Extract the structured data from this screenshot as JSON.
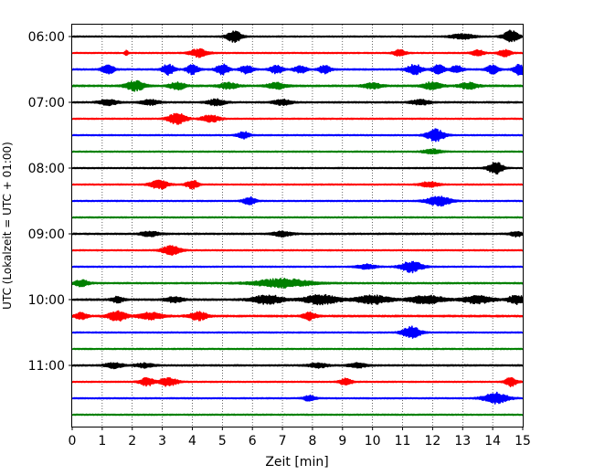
{
  "chart_data": {
    "type": "line",
    "title": "",
    "xlabel": "Zeit  [min]",
    "ylabel": "UTC (Lokalzeit = UTC + 01:00)",
    "xlim": [
      0,
      15
    ],
    "x_ticks": [
      "0",
      "1",
      "2",
      "3",
      "4",
      "5",
      "6",
      "7",
      "8",
      "9",
      "10",
      "11",
      "12",
      "13",
      "14",
      "15"
    ],
    "y_tick_labels": [
      "06:00",
      "07:00",
      "08:00",
      "09:00",
      "10:00",
      "11:00"
    ],
    "trace_interval_minutes": 15,
    "trace_colors": [
      "#000000",
      "#ff0000",
      "#0000ff",
      "#008000"
    ],
    "grid": "vertical dotted",
    "series": [
      {
        "start": "06:00",
        "color": "#000000",
        "base": 0.25,
        "bursts": [
          [
            5.4,
            3.0,
            0.25
          ],
          [
            14.6,
            3.2,
            0.25
          ],
          [
            13.0,
            1.4,
            0.4
          ]
        ]
      },
      {
        "start": "06:15",
        "color": "#ff0000",
        "base": 0.25,
        "bursts": [
          [
            4.2,
            2.2,
            0.3
          ],
          [
            1.8,
            2.2,
            0.05
          ],
          [
            10.9,
            1.8,
            0.2
          ],
          [
            13.5,
            1.8,
            0.2
          ],
          [
            14.4,
            2.0,
            0.2
          ]
        ]
      },
      {
        "start": "06:30",
        "color": "#0000ff",
        "base": 0.3,
        "bursts": [
          [
            1.2,
            2.6,
            0.2
          ],
          [
            3.2,
            3.0,
            0.2
          ],
          [
            4.0,
            2.6,
            0.2
          ],
          [
            5.0,
            3.0,
            0.2
          ],
          [
            5.8,
            2.4,
            0.2
          ],
          [
            6.8,
            2.4,
            0.2
          ],
          [
            7.6,
            2.2,
            0.2
          ],
          [
            8.4,
            2.2,
            0.2
          ],
          [
            11.4,
            2.8,
            0.25
          ],
          [
            12.2,
            2.6,
            0.2
          ],
          [
            12.8,
            2.2,
            0.2
          ],
          [
            14.0,
            2.4,
            0.2
          ],
          [
            14.9,
            3.0,
            0.2
          ]
        ]
      },
      {
        "start": "06:45",
        "color": "#008000",
        "base": 0.35,
        "bursts": [
          [
            2.1,
            2.8,
            0.3
          ],
          [
            3.5,
            2.2,
            0.25
          ],
          [
            5.2,
            1.8,
            0.3
          ],
          [
            6.8,
            1.8,
            0.3
          ],
          [
            10.0,
            1.6,
            0.3
          ],
          [
            12.0,
            2.2,
            0.3
          ],
          [
            13.2,
            1.8,
            0.3
          ]
        ]
      },
      {
        "start": "07:00",
        "color": "#000000",
        "base": 0.3,
        "bursts": [
          [
            1.2,
            1.8,
            0.3
          ],
          [
            2.6,
            1.6,
            0.3
          ],
          [
            4.8,
            1.8,
            0.3
          ],
          [
            7.0,
            1.6,
            0.3
          ],
          [
            11.6,
            1.6,
            0.3
          ]
        ]
      },
      {
        "start": "07:15",
        "color": "#ff0000",
        "base": 0.25,
        "bursts": [
          [
            3.5,
            3.0,
            0.3
          ],
          [
            4.6,
            2.0,
            0.3
          ]
        ]
      },
      {
        "start": "07:30",
        "color": "#0000ff",
        "base": 0.25,
        "bursts": [
          [
            5.7,
            2.0,
            0.2
          ],
          [
            12.1,
            3.2,
            0.3
          ]
        ]
      },
      {
        "start": "07:45",
        "color": "#008000",
        "base": 0.25,
        "bursts": [
          [
            12.0,
            1.4,
            0.3
          ]
        ]
      },
      {
        "start": "08:00",
        "color": "#000000",
        "base": 0.25,
        "bursts": [
          [
            14.1,
            3.2,
            0.25
          ]
        ]
      },
      {
        "start": "08:15",
        "color": "#ff0000",
        "base": 0.25,
        "bursts": [
          [
            2.9,
            2.4,
            0.3
          ],
          [
            4.0,
            2.4,
            0.2
          ],
          [
            11.9,
            1.6,
            0.3
          ]
        ]
      },
      {
        "start": "08:30",
        "color": "#0000ff",
        "base": 0.25,
        "bursts": [
          [
            5.9,
            2.2,
            0.2
          ],
          [
            12.2,
            2.6,
            0.4
          ]
        ]
      },
      {
        "start": "08:45",
        "color": "#008000",
        "base": 0.25,
        "bursts": []
      },
      {
        "start": "09:00",
        "color": "#000000",
        "base": 0.3,
        "bursts": [
          [
            2.6,
            1.6,
            0.3
          ],
          [
            7.0,
            1.6,
            0.3
          ],
          [
            14.8,
            1.6,
            0.2
          ]
        ]
      },
      {
        "start": "09:15",
        "color": "#ff0000",
        "base": 0.25,
        "bursts": [
          [
            3.3,
            2.6,
            0.3
          ]
        ]
      },
      {
        "start": "09:30",
        "color": "#0000ff",
        "base": 0.25,
        "bursts": [
          [
            11.3,
            3.0,
            0.35
          ],
          [
            9.8,
            1.4,
            0.3
          ]
        ]
      },
      {
        "start": "09:45",
        "color": "#008000",
        "base": 0.3,
        "bursts": [
          [
            0.3,
            1.8,
            0.25
          ],
          [
            7.0,
            2.4,
            0.9
          ]
        ]
      },
      {
        "start": "10:00",
        "color": "#000000",
        "base": 0.35,
        "bursts": [
          [
            1.5,
            1.8,
            0.2
          ],
          [
            3.4,
            1.6,
            0.3
          ],
          [
            6.5,
            2.6,
            0.5
          ],
          [
            8.3,
            2.6,
            0.6
          ],
          [
            10.0,
            2.4,
            0.6
          ],
          [
            11.8,
            2.2,
            0.6
          ],
          [
            13.5,
            2.2,
            0.5
          ],
          [
            14.8,
            2.4,
            0.3
          ]
        ]
      },
      {
        "start": "10:15",
        "color": "#ff0000",
        "base": 0.35,
        "bursts": [
          [
            0.3,
            2.0,
            0.2
          ],
          [
            1.5,
            2.8,
            0.3
          ],
          [
            2.6,
            2.0,
            0.4
          ],
          [
            4.2,
            2.4,
            0.3
          ],
          [
            7.9,
            2.4,
            0.2
          ]
        ]
      },
      {
        "start": "10:30",
        "color": "#0000ff",
        "base": 0.25,
        "bursts": [
          [
            11.3,
            3.2,
            0.3
          ]
        ]
      },
      {
        "start": "10:45",
        "color": "#008000",
        "base": 0.25,
        "bursts": []
      },
      {
        "start": "11:00",
        "color": "#000000",
        "base": 0.3,
        "bursts": [
          [
            1.4,
            1.6,
            0.3
          ],
          [
            2.4,
            1.4,
            0.3
          ],
          [
            8.2,
            1.4,
            0.3
          ],
          [
            9.5,
            1.4,
            0.3
          ]
        ]
      },
      {
        "start": "11:15",
        "color": "#ff0000",
        "base": 0.25,
        "bursts": [
          [
            2.5,
            2.2,
            0.25
          ],
          [
            3.2,
            2.4,
            0.3
          ],
          [
            9.1,
            2.0,
            0.2
          ],
          [
            14.6,
            2.4,
            0.2
          ]
        ]
      },
      {
        "start": "11:30",
        "color": "#0000ff",
        "base": 0.25,
        "bursts": [
          [
            7.9,
            1.6,
            0.2
          ],
          [
            14.1,
            3.0,
            0.4
          ]
        ]
      },
      {
        "start": "11:45",
        "color": "#008000",
        "base": 0.25,
        "bursts": []
      }
    ]
  }
}
